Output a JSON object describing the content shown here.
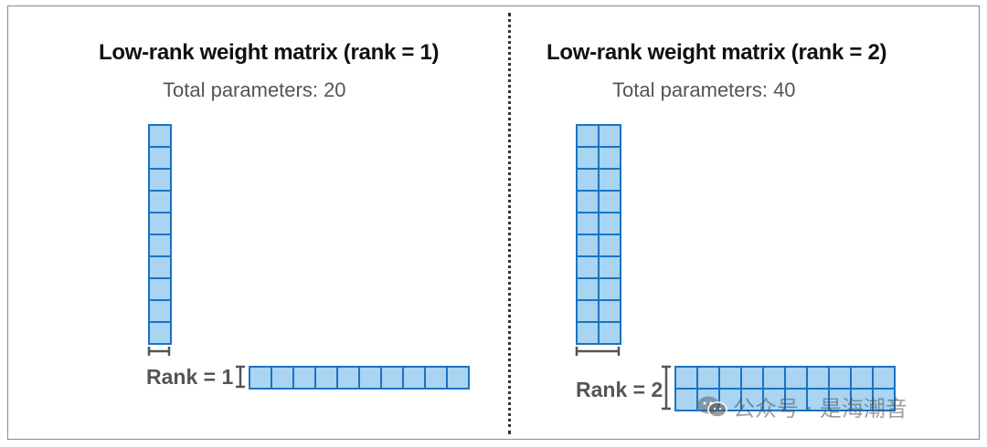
{
  "left_panel": {
    "title": "Low-rank weight matrix (rank = 1)",
    "subtitle": "Total parameters: 20",
    "rank_label": "Rank = 1",
    "tall_matrix": {
      "rows": 10,
      "cols": 1
    },
    "wide_matrix": {
      "rows": 1,
      "cols": 10
    }
  },
  "right_panel": {
    "title": "Low-rank weight matrix (rank = 2)",
    "subtitle": "Total parameters: 40",
    "rank_label": "Rank = 2",
    "tall_matrix": {
      "rows": 10,
      "cols": 2
    },
    "wide_matrix": {
      "rows": 2,
      "cols": 10
    }
  },
  "colors": {
    "cell_fill": "#a9d4f2",
    "cell_stroke": "#1a73c4",
    "bracket": "#555555"
  },
  "watermark": {
    "icon": "wechat-icon",
    "text": "公众号 · 是海潮音"
  }
}
